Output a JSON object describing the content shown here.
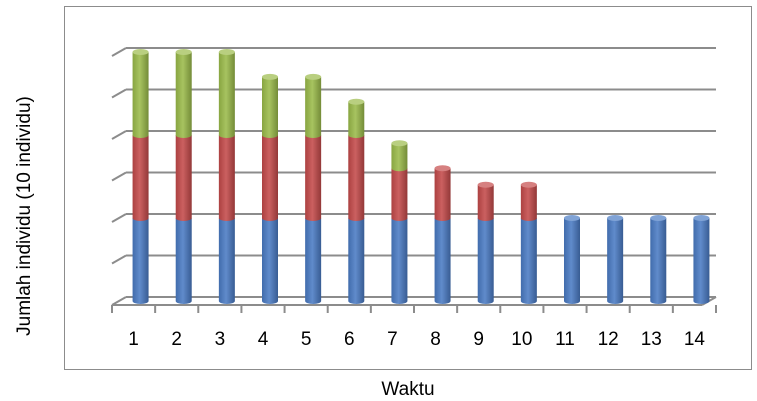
{
  "chart_data": {
    "type": "bar",
    "stacked": true,
    "style": "3d-cylinder",
    "title": "",
    "xlabel": "Waktu",
    "ylabel": "Jumlah individu (10 individu)",
    "categories": [
      "1",
      "2",
      "3",
      "4",
      "5",
      "6",
      "7",
      "8",
      "9",
      "10",
      "11",
      "12",
      "13",
      "14"
    ],
    "ylim": [
      0,
      6
    ],
    "y_tick_labels_shown": false,
    "grid": true,
    "legend": "none",
    "series": [
      {
        "color": "#4a7bc4",
        "values": [
          2,
          2,
          2,
          2,
          2,
          2,
          2,
          2,
          2,
          2,
          2,
          2,
          2,
          2
        ]
      },
      {
        "color": "#c44a4a",
        "values": [
          2,
          2,
          2,
          2,
          2,
          2,
          1.2,
          1.2,
          0.8,
          0.8,
          0,
          0,
          0,
          0
        ]
      },
      {
        "color": "#9bbb4a",
        "values": [
          2,
          2,
          2,
          1.4,
          1.4,
          0.8,
          0.6,
          0,
          0,
          0,
          0,
          0,
          0,
          0
        ]
      }
    ]
  }
}
